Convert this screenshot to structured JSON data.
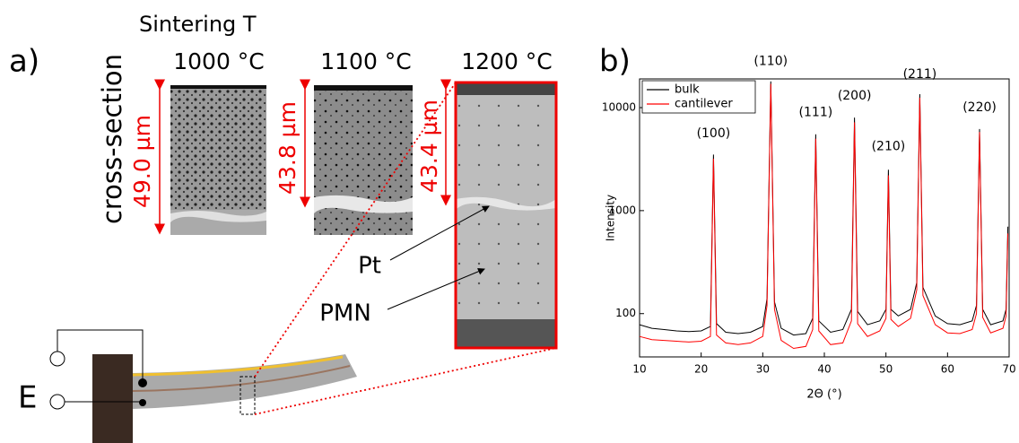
{
  "panel_a": {
    "label": "a)",
    "heading": "Sintering T",
    "temperatures": [
      "1000 °C",
      "1100 °C",
      "1200 °C"
    ],
    "side_label": "cross-section",
    "thicknesses": [
      "49.0 µm",
      "43.8 µm",
      "43.4 µm"
    ],
    "callouts": [
      "Pt",
      "PMN"
    ],
    "field_label": "E"
  },
  "chart_data": {
    "type": "line",
    "panel_label": "b)",
    "x_label": "2Θ (°)",
    "y_label": "Intensity",
    "log_y": true,
    "legend": "upper left",
    "xlim": [
      10,
      70
    ],
    "xticks": [
      10,
      20,
      30,
      40,
      50,
      60,
      70
    ],
    "ylim": [
      38,
      19000
    ],
    "yticks": [
      100,
      1000,
      10000
    ],
    "x": [
      10,
      12,
      14,
      16,
      18,
      20,
      21.5,
      22,
      22.5,
      24,
      26,
      28,
      30,
      30.7,
      31.3,
      31.9,
      33,
      35,
      37,
      38.1,
      38.6,
      39.1,
      41,
      43,
      44.4,
      44.9,
      45.4,
      47,
      49,
      50,
      50.4,
      50.8,
      52,
      54,
      55,
      55.5,
      56,
      58,
      60,
      62,
      64,
      64.7,
      65.2,
      65.7,
      67,
      69,
      69.5,
      69.8
    ],
    "series": [
      {
        "name": "bulk",
        "color": "#000000",
        "values": [
          78,
          72,
          70,
          68,
          67,
          68,
          75,
          3500,
          80,
          66,
          64,
          66,
          75,
          140,
          18000,
          130,
          72,
          62,
          64,
          90,
          5500,
          85,
          66,
          70,
          110,
          8000,
          105,
          78,
          85,
          110,
          2500,
          110,
          95,
          110,
          200,
          13500,
          180,
          95,
          80,
          78,
          85,
          120,
          6200,
          110,
          78,
          85,
          110,
          700
        ]
      },
      {
        "name": "cantilever",
        "color": "#ff0000",
        "values": [
          60,
          56,
          55,
          54,
          53,
          54,
          60,
          3200,
          62,
          52,
          50,
          52,
          60,
          120,
          17000,
          110,
          55,
          46,
          48,
          70,
          5000,
          68,
          50,
          52,
          85,
          7200,
          80,
          60,
          68,
          90,
          2200,
          88,
          75,
          90,
          170,
          12500,
          150,
          78,
          65,
          64,
          70,
          100,
          5800,
          92,
          65,
          72,
          95,
          600
        ]
      }
    ],
    "annotations": [
      {
        "text": "(100)",
        "x": 22,
        "y": 5600
      },
      {
        "text": "(110)",
        "x": 31.3,
        "y": 28000
      },
      {
        "text": "(111)",
        "x": 38.6,
        "y": 9000
      },
      {
        "text": "(200)",
        "x": 44.9,
        "y": 13000
      },
      {
        "text": "(210)",
        "x": 50.4,
        "y": 4200
      },
      {
        "text": "(211)",
        "x": 55.5,
        "y": 21000
      },
      {
        "text": "(220)",
        "x": 65.2,
        "y": 10000
      }
    ]
  }
}
